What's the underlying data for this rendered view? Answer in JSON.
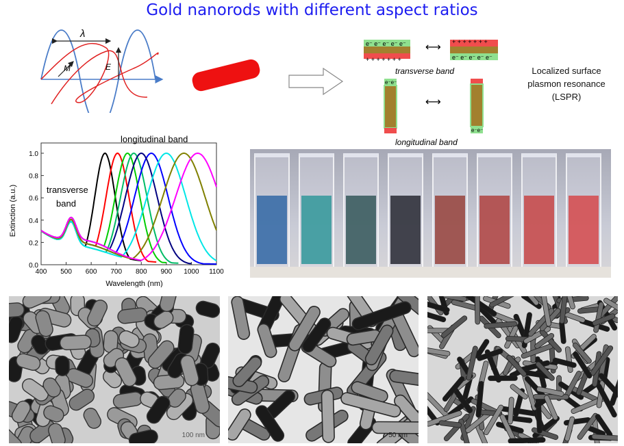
{
  "title": "Gold nanorods with different aspect ratios",
  "wave_diagram": {
    "lambda_symbol": "λ",
    "e_symbol": "E",
    "m_symbol": "M"
  },
  "charge_diagram": {
    "transverse_label": "transverse band",
    "longitudinal_label": "longitudinal band",
    "electron": "e⁻",
    "plus": "+"
  },
  "lspr_label": [
    "Localized surface",
    "plasmon resonance",
    "(LSPR)"
  ],
  "spectrum_annotations": {
    "longitudinal": "longitudinal band",
    "transverse": [
      "transverse",
      "band"
    ]
  },
  "cuvette_colors": [
    "#3d6fa8",
    "#3d9b9e",
    "#3f5f63",
    "#34353f",
    "#9a4c46",
    "#b14c4b",
    "#c74f50",
    "#d45356"
  ],
  "tem_images": [
    {
      "scale_label": "100 nm",
      "style": "dense short rods"
    },
    {
      "scale_label": "50 nm",
      "style": "long rods"
    },
    {
      "scale_label": "",
      "style": "thin rods"
    }
  ],
  "chart_data": {
    "type": "line",
    "title": "",
    "xlabel": "Wavelength (nm)",
    "ylabel": "Extinction (a.u.)",
    "xlim": [
      400,
      1100
    ],
    "ylim": [
      0.0,
      1.0
    ],
    "xticks": [
      400,
      500,
      600,
      700,
      800,
      900,
      1000,
      1100
    ],
    "yticks": [
      0.0,
      0.2,
      0.4,
      0.6,
      0.8,
      1.0
    ],
    "series": [
      {
        "color": "#000000",
        "peak": 655,
        "width": 58,
        "end": 800
      },
      {
        "color": "#ff0000",
        "peak": 705,
        "width": 65,
        "end": 860
      },
      {
        "color": "#00cc00",
        "peak": 745,
        "width": 70,
        "end": 900
      },
      {
        "color": "#00bb66",
        "peak": 770,
        "width": 75,
        "end": 950
      },
      {
        "color": "#0000ff",
        "peak": 840,
        "width": 95,
        "end": 1100
      },
      {
        "color": "#000080",
        "peak": 800,
        "width": 90,
        "end": 1000
      },
      {
        "color": "#00e6e6",
        "peak": 900,
        "width": 110,
        "end": 1100
      },
      {
        "color": "#808000",
        "peak": 970,
        "width": 120,
        "end": 1100
      },
      {
        "color": "#ff00ff",
        "peak": 1025,
        "width": 125,
        "end": 1100
      }
    ],
    "transverse_peak": {
      "x": 520,
      "y": 0.42
    }
  }
}
